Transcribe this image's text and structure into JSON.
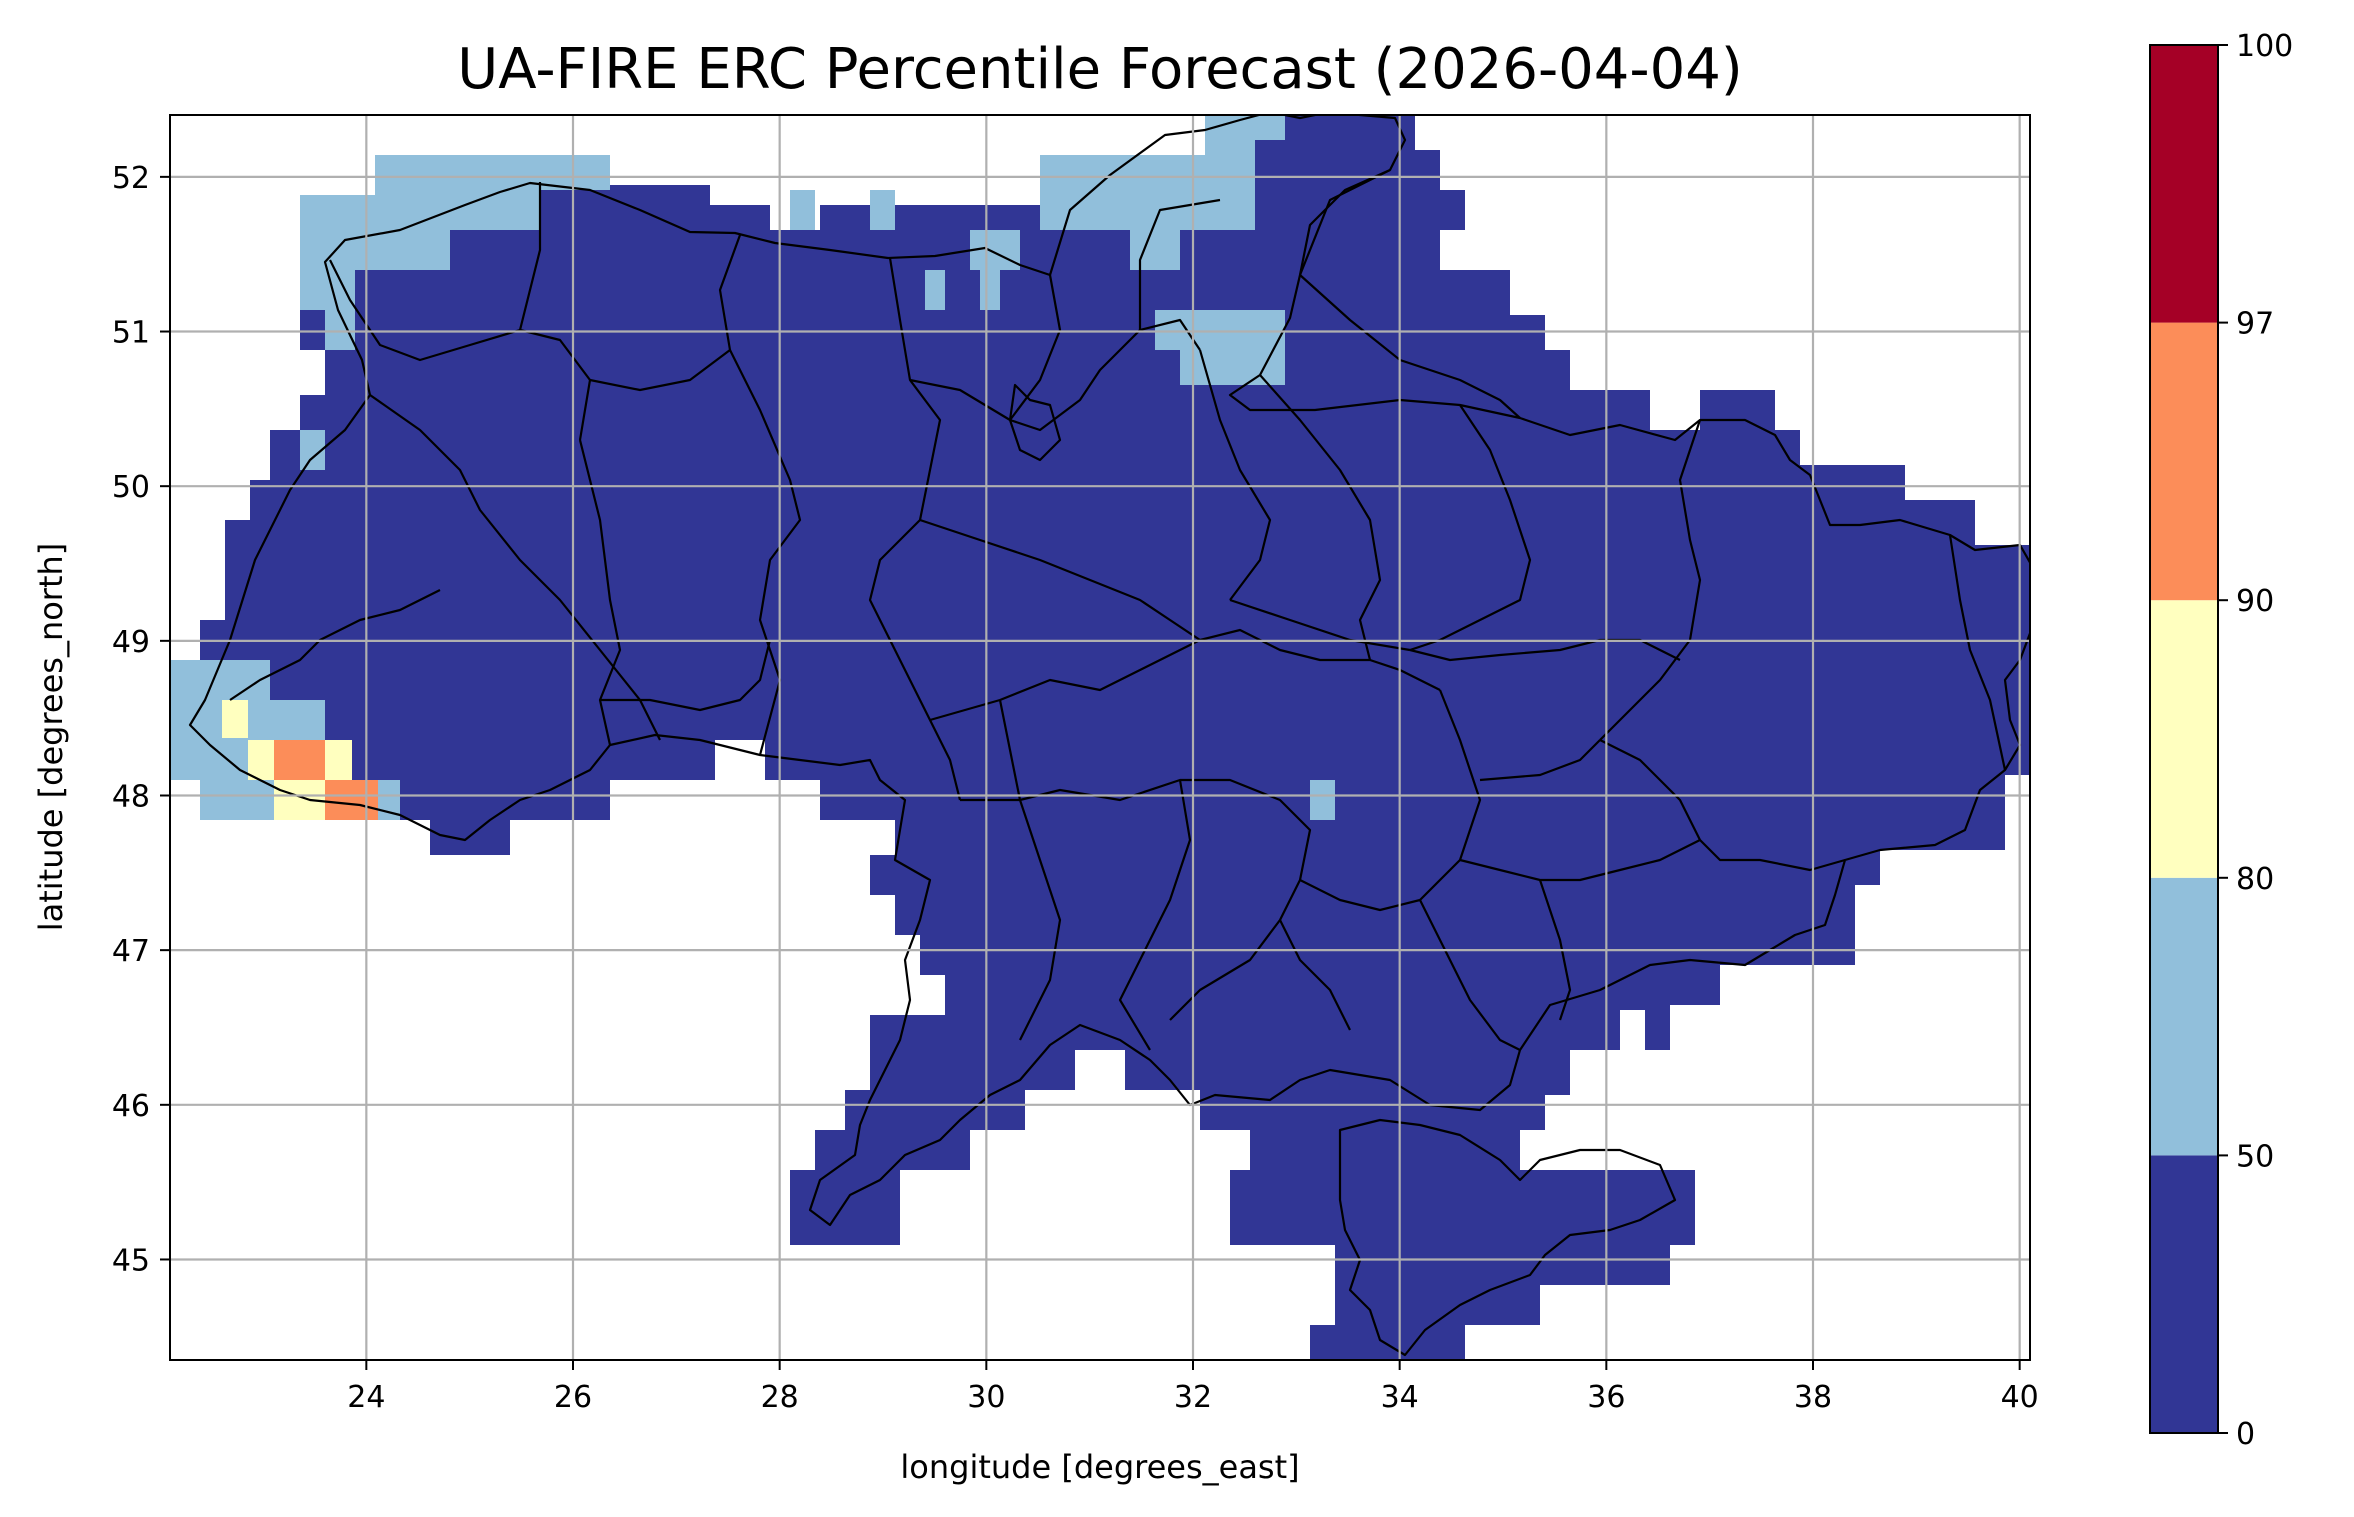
{
  "title": "UA-FIRE ERC Percentile Forecast (2026-04-04)",
  "xlabel": "longitude [degrees_east]",
  "ylabel": "latitude [degrees_north]",
  "chart_data": {
    "type": "heatmap",
    "xlim": [
      22.1,
      40.1
    ],
    "ylim": [
      44.35,
      52.4
    ],
    "xticks": [
      24,
      26,
      28,
      30,
      32,
      34,
      36,
      38,
      40
    ],
    "yticks": [
      45,
      46,
      47,
      48,
      49,
      50,
      51,
      52
    ],
    "grid": true,
    "colorbar": {
      "bounds": [
        0,
        50,
        80,
        90,
        97,
        100
      ],
      "colors": [
        "#313695",
        "#91bfdb",
        "#ffffbf",
        "#fc8d59",
        "#a50026"
      ],
      "tick_labels": [
        "0",
        "50",
        "80",
        "90",
        "97",
        "100"
      ],
      "placement": "right"
    }
  }
}
